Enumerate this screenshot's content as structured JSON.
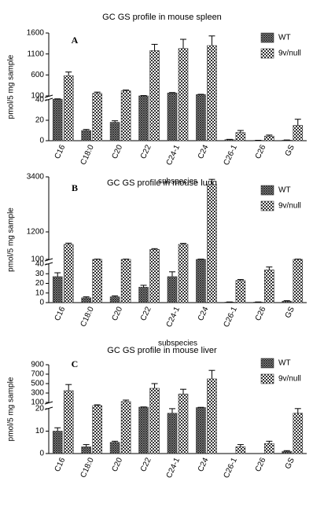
{
  "chart_data": [
    {
      "type": "bar",
      "title": "GC GS profile in mouse spleen",
      "panel": "A",
      "ylabel": "pmol/5 mg sample",
      "xlabel": "subspecies",
      "categories": [
        "C16",
        "C18:0",
        "C20",
        "C22",
        "C24-1",
        "C24",
        "C26-1",
        "C26",
        "GS"
      ],
      "ylim_lower": [
        0,
        40
      ],
      "yticks_lower": [
        0,
        20,
        40
      ],
      "ylim_upper": [
        100,
        1600
      ],
      "yticks_upper": [
        100,
        600,
        1100,
        1600
      ],
      "series": [
        {
          "name": "WT",
          "color": "#333333",
          "pattern": "hatch",
          "values": [
            50,
            10,
            18,
            100,
            170,
            130,
            1,
            0.3,
            0.5
          ],
          "errors": [
            5,
            1,
            1.5,
            8,
            10,
            8,
            0.3,
            0.1,
            0.2
          ]
        },
        {
          "name": "9v/null",
          "color": "#333333",
          "pattern": "checker",
          "values": [
            580,
            160,
            220,
            1180,
            1230,
            1300,
            8,
            4.5,
            15
          ],
          "errors": [
            90,
            30,
            20,
            150,
            220,
            230,
            2,
            1,
            6
          ]
        }
      ]
    },
    {
      "type": "bar",
      "title": "GC GS profile in mouse lung",
      "panel": "B",
      "ylabel": "pmol/5 mg sample",
      "xlabel": "subspecies",
      "categories": [
        "C16",
        "C18:0",
        "C20",
        "C22",
        "C24-1",
        "C24",
        "C26-1",
        "C26",
        "GS"
      ],
      "ylim_lower": [
        0,
        40
      ],
      "yticks_lower": [
        0,
        10,
        20,
        30,
        40
      ],
      "ylim_upper": [
        100,
        3400
      ],
      "yticks_upper": [
        100,
        1200,
        3400
      ],
      "series": [
        {
          "name": "WT",
          "color": "#333333",
          "pattern": "hatch",
          "values": [
            27,
            5,
            6,
            16,
            27,
            100,
            0.5,
            0.5,
            1.5
          ],
          "errors": [
            4,
            1,
            1,
            2,
            5,
            10,
            0.2,
            0.2,
            0.5
          ]
        },
        {
          "name": "9v/null",
          "color": "#333333",
          "pattern": "checker",
          "values": [
            700,
            100,
            100,
            500,
            700,
            3100,
            23,
            34,
            100
          ],
          "errors": [
            50,
            10,
            10,
            30,
            40,
            200,
            1,
            3,
            10
          ]
        }
      ]
    },
    {
      "type": "bar",
      "title": "GC GS profile in mouse liver",
      "panel": "C",
      "ylabel": "pmol/5 mg sample",
      "categories": [
        "C16",
        "C18:0",
        "C20",
        "C22",
        "C24-1",
        "C24",
        "C26-1",
        "C26",
        "GS"
      ],
      "ylim_lower": [
        0,
        20
      ],
      "yticks_lower": [
        0,
        10,
        20
      ],
      "ylim_upper": [
        100,
        900
      ],
      "yticks_upper": [
        100,
        300,
        500,
        700,
        900
      ],
      "series": [
        {
          "name": "WT",
          "color": "#333333",
          "pattern": "hatch",
          "values": [
            10,
            3,
            5,
            40,
            18,
            35,
            0,
            0,
            1
          ],
          "errors": [
            1.5,
            1,
            0.5,
            3,
            3,
            3,
            0,
            0,
            0.3
          ]
        },
        {
          "name": "9v/null",
          "color": "#333333",
          "pattern": "checker",
          "values": [
            350,
            60,
            120,
            400,
            280,
            600,
            3,
            4.5,
            18
          ],
          "errors": [
            130,
            10,
            30,
            100,
            100,
            180,
            1,
            1,
            4
          ]
        }
      ]
    }
  ]
}
